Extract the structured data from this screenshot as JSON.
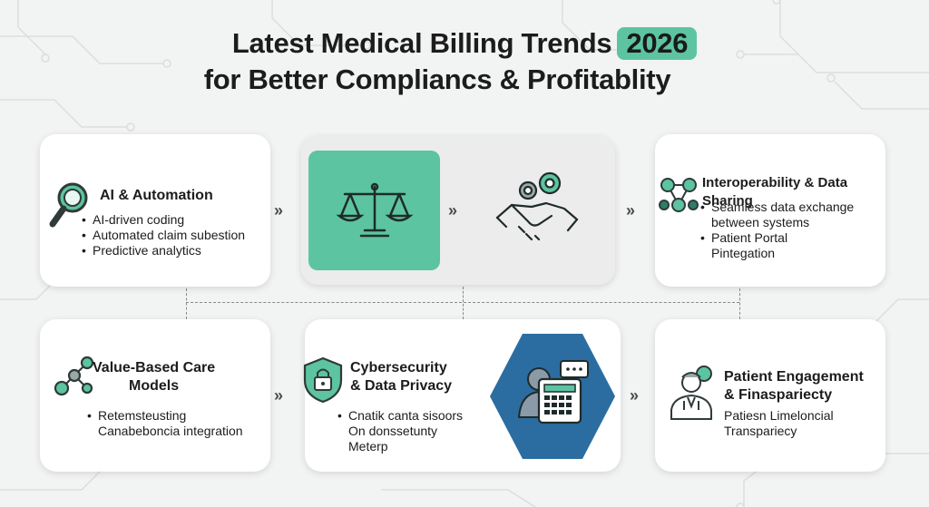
{
  "title": {
    "line1": "Latest Medical Billing Trends",
    "year": "2026",
    "line2": "for Better Compliancs & Profitablity"
  },
  "colors": {
    "accent": "#5cc4a0",
    "hex_badge": "#2b6da0",
    "icon_stroke": "#2f3a3a"
  },
  "cards": {
    "ai": {
      "title": "AI & Automation",
      "icon": "magnifier-icon",
      "items": [
        "AI-driven coding",
        "Automated claim subestion",
        "Predictive analytics"
      ]
    },
    "scales": {
      "icon": "balance-scale-icon"
    },
    "handshake": {
      "icon": "handshake-gears-icon"
    },
    "interop": {
      "title": "Interoperability & Data Sharing",
      "icon": "network-nodes-icon",
      "items": [
        "Seamless data exchange",
        "between systems",
        "Patient Portal",
        "Pintegation"
      ]
    },
    "value": {
      "title_l1": "Value-Based Care",
      "title_l2": "Models",
      "icon": "connected-nodes-icon",
      "items": [
        "Retemsteusting",
        "Canabeboncia integration"
      ]
    },
    "cyber": {
      "title_l1": "Cybersecurity",
      "title_l2": "& Data Privacy",
      "icon": "shield-lock-icon",
      "items": [
        "Cnatik canta sisoors",
        "On donssetunty",
        "Meterp"
      ]
    },
    "billing": {
      "icon": "patient-calculator-icon"
    },
    "patient": {
      "title_l1": "Patient Engagement",
      "title_l2": "& Finaspariecty",
      "icon": "doctor-chat-icon",
      "items": [
        "Patiesn Limeloncial",
        "Transpariecy"
      ]
    }
  },
  "arrows": [
    "»",
    "»",
    "»",
    "»",
    "»"
  ]
}
